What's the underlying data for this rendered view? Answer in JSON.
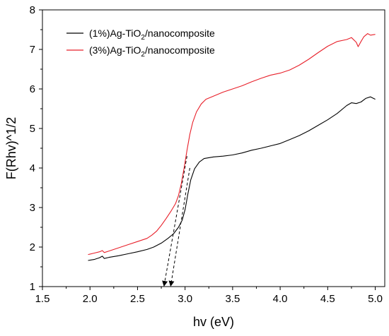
{
  "chart_data": {
    "type": "line",
    "xlabel": "hv (eV)",
    "ylabel": "F(Rhv)^1/2",
    "xlim": [
      1.5,
      5.1
    ],
    "ylim": [
      1,
      8
    ],
    "xticks": [
      "1.5",
      "2.0",
      "2.5",
      "3.0",
      "3.5",
      "4.0",
      "4.5",
      "5.0"
    ],
    "yticks": [
      "1",
      "2",
      "3",
      "4",
      "5",
      "6",
      "7",
      "8"
    ],
    "grid": false,
    "legend_position": "top-left",
    "series": [
      {
        "name": "(1%)Ag-TiO2/nanocomposite",
        "legend": {
          "prefix": "(1%)Ag-TiO",
          "sub": "2",
          "suffix": "/nanocomposite"
        },
        "color": "#000000",
        "points": [
          [
            1.98,
            1.66
          ],
          [
            2.05,
            1.69
          ],
          [
            2.1,
            1.73
          ],
          [
            2.13,
            1.77
          ],
          [
            2.15,
            1.71
          ],
          [
            2.2,
            1.74
          ],
          [
            2.3,
            1.78
          ],
          [
            2.4,
            1.83
          ],
          [
            2.5,
            1.88
          ],
          [
            2.6,
            1.94
          ],
          [
            2.67,
            2.0
          ],
          [
            2.75,
            2.1
          ],
          [
            2.82,
            2.22
          ],
          [
            2.88,
            2.34
          ],
          [
            2.93,
            2.5
          ],
          [
            2.97,
            2.68
          ],
          [
            3.0,
            2.95
          ],
          [
            3.03,
            3.35
          ],
          [
            3.06,
            3.7
          ],
          [
            3.1,
            3.98
          ],
          [
            3.15,
            4.15
          ],
          [
            3.2,
            4.24
          ],
          [
            3.3,
            4.28
          ],
          [
            3.4,
            4.3
          ],
          [
            3.5,
            4.33
          ],
          [
            3.6,
            4.38
          ],
          [
            3.7,
            4.45
          ],
          [
            3.8,
            4.5
          ],
          [
            3.9,
            4.56
          ],
          [
            4.0,
            4.62
          ],
          [
            4.1,
            4.72
          ],
          [
            4.2,
            4.82
          ],
          [
            4.3,
            4.94
          ],
          [
            4.4,
            5.08
          ],
          [
            4.5,
            5.22
          ],
          [
            4.6,
            5.38
          ],
          [
            4.7,
            5.58
          ],
          [
            4.75,
            5.65
          ],
          [
            4.8,
            5.63
          ],
          [
            4.85,
            5.67
          ],
          [
            4.9,
            5.76
          ],
          [
            4.95,
            5.8
          ],
          [
            5.0,
            5.74
          ]
        ]
      },
      {
        "name": "(3%)Ag-TiO2/nanocomposite",
        "legend": {
          "prefix": "(3%)Ag-TiO",
          "sub": "2",
          "suffix": "/nanocomposite"
        },
        "color": "#e8202a",
        "points": [
          [
            1.98,
            1.81
          ],
          [
            2.05,
            1.85
          ],
          [
            2.1,
            1.88
          ],
          [
            2.13,
            1.91
          ],
          [
            2.15,
            1.86
          ],
          [
            2.2,
            1.9
          ],
          [
            2.3,
            1.98
          ],
          [
            2.4,
            2.06
          ],
          [
            2.5,
            2.14
          ],
          [
            2.6,
            2.22
          ],
          [
            2.65,
            2.3
          ],
          [
            2.7,
            2.4
          ],
          [
            2.75,
            2.55
          ],
          [
            2.8,
            2.72
          ],
          [
            2.85,
            2.9
          ],
          [
            2.9,
            3.1
          ],
          [
            2.93,
            3.3
          ],
          [
            2.96,
            3.6
          ],
          [
            2.99,
            4.0
          ],
          [
            3.02,
            4.45
          ],
          [
            3.05,
            4.85
          ],
          [
            3.08,
            5.15
          ],
          [
            3.12,
            5.42
          ],
          [
            3.17,
            5.62
          ],
          [
            3.22,
            5.74
          ],
          [
            3.3,
            5.82
          ],
          [
            3.4,
            5.92
          ],
          [
            3.5,
            6.0
          ],
          [
            3.6,
            6.08
          ],
          [
            3.7,
            6.18
          ],
          [
            3.8,
            6.27
          ],
          [
            3.9,
            6.35
          ],
          [
            4.0,
            6.4
          ],
          [
            4.1,
            6.48
          ],
          [
            4.2,
            6.6
          ],
          [
            4.3,
            6.75
          ],
          [
            4.4,
            6.92
          ],
          [
            4.5,
            7.08
          ],
          [
            4.6,
            7.2
          ],
          [
            4.7,
            7.25
          ],
          [
            4.75,
            7.3
          ],
          [
            4.8,
            7.18
          ],
          [
            4.82,
            7.07
          ],
          [
            4.85,
            7.2
          ],
          [
            4.88,
            7.32
          ],
          [
            4.92,
            7.4
          ],
          [
            4.95,
            7.36
          ],
          [
            5.0,
            7.38
          ]
        ]
      }
    ],
    "annotations": [
      {
        "type": "dashed-arrow",
        "from": [
          3.02,
          4.3
        ],
        "to": [
          2.78,
          1.0
        ]
      },
      {
        "type": "dashed-arrow",
        "from": [
          3.05,
          4.0
        ],
        "to": [
          2.85,
          1.0
        ]
      }
    ]
  }
}
